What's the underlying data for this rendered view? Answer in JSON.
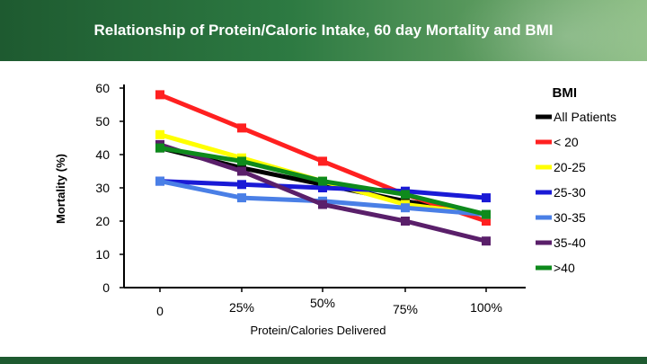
{
  "slide": {
    "title": "Relationship of Protein/Caloric Intake, 60 day Mortality and BMI"
  },
  "chart_data": {
    "type": "line",
    "title": "Relationship of Protein/Caloric Intake, 60 day Mortality and BMI",
    "xlabel": "Protein/Calories Delivered",
    "ylabel": "Mortality (%)",
    "ylim": [
      0,
      60
    ],
    "yticks": [
      0,
      10,
      20,
      30,
      40,
      50,
      60
    ],
    "categories": [
      "0",
      "25%",
      "50%",
      "75%",
      "100%"
    ],
    "legend_title": "BMI",
    "series": [
      {
        "name": "All Patients",
        "color": "#000000",
        "values": [
          42,
          36,
          31,
          26,
          22
        ]
      },
      {
        "name": "< 20",
        "color": "#ff2020",
        "values": [
          58,
          48,
          38,
          28,
          20
        ]
      },
      {
        "name": "20-25",
        "color": "#ffff00",
        "values": [
          46,
          39,
          32,
          25,
          22
        ]
      },
      {
        "name": "25-30",
        "color": "#1a1ad6",
        "values": [
          32,
          31,
          30,
          29,
          27
        ]
      },
      {
        "name": "30-35",
        "color": "#4a7fe6",
        "values": [
          32,
          27,
          26,
          24,
          22
        ]
      },
      {
        "name": "35-40",
        "color": "#5a1f6a",
        "values": [
          43,
          35,
          25,
          20,
          14
        ]
      },
      {
        "name": ">40",
        "color": "#0e8a1c",
        "values": [
          42,
          38,
          32,
          28,
          22
        ]
      }
    ]
  }
}
